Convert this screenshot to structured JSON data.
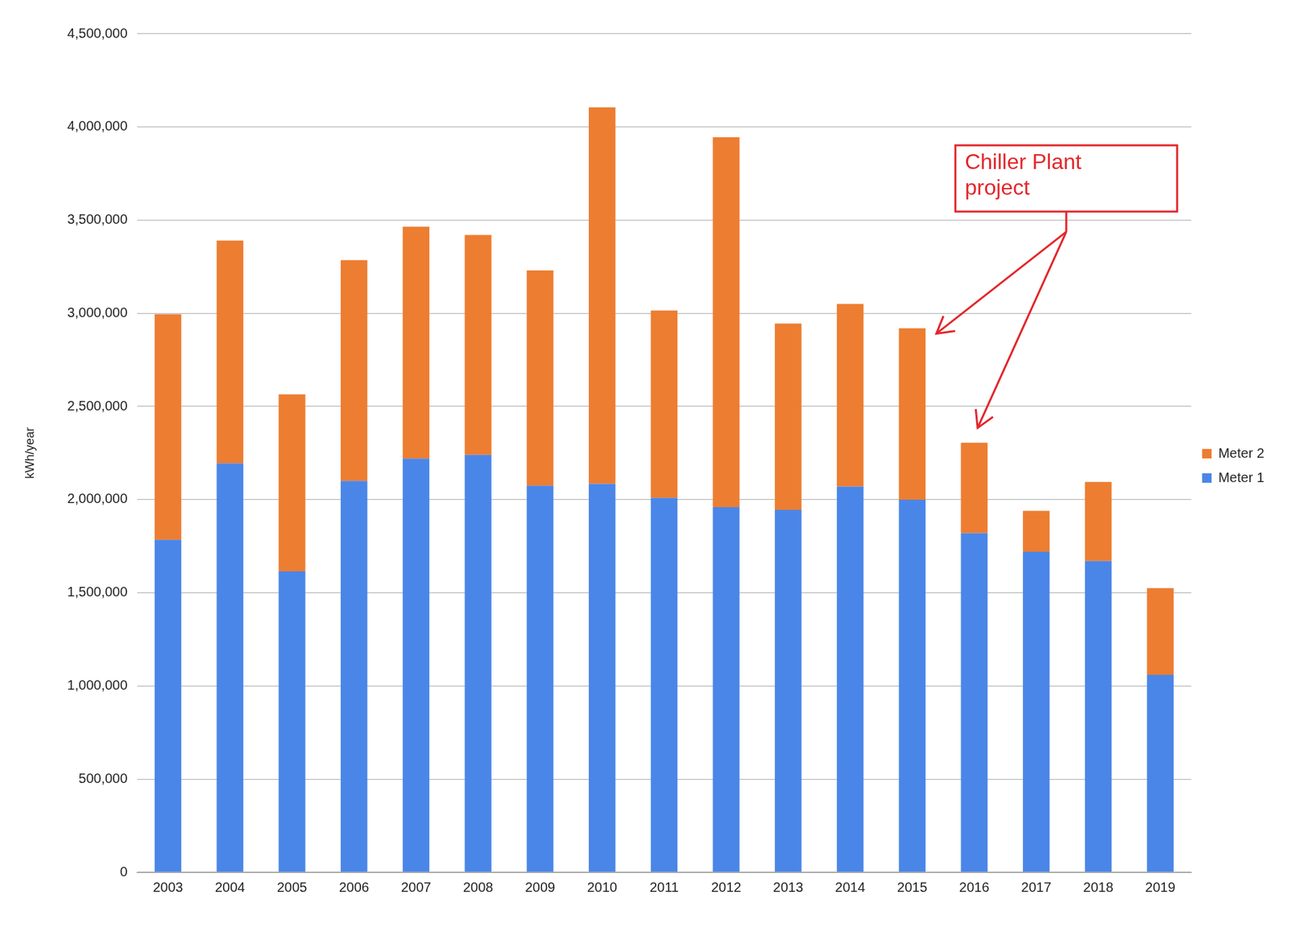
{
  "chart_data": {
    "type": "bar",
    "y_label": "kWh/year",
    "categories": [
      "2003",
      "2004",
      "2005",
      "2006",
      "2007",
      "2008",
      "2009",
      "2010",
      "2011",
      "2012",
      "2013",
      "2014",
      "2015",
      "2016",
      "2017",
      "2018",
      "2019"
    ],
    "series": [
      {
        "name": "Meter 1",
        "color": "#4a86e8",
        "values": [
          1785000,
          2195000,
          1615000,
          2100000,
          2220000,
          2240000,
          2075000,
          2085000,
          2010000,
          1960000,
          1945000,
          2070000,
          2000000,
          1820000,
          1720000,
          1670000,
          1060000
        ]
      },
      {
        "name": "Meter 2",
        "color": "#ed7d31",
        "values": [
          1210000,
          1195000,
          950000,
          1185000,
          1245000,
          1180000,
          1155000,
          2020000,
          1005000,
          1985000,
          1000000,
          980000,
          920000,
          485000,
          220000,
          425000,
          465000
        ]
      }
    ],
    "stacked": true,
    "ylim": [
      0,
      4500000
    ],
    "yticks": [
      0,
      {
        "value": 500000,
        "label": "500,000"
      },
      {
        "value": 1000000,
        "label": "1,000,000"
      },
      {
        "value": 1500000,
        "label": "1,500,000"
      },
      {
        "value": 2000000,
        "label": "2,000,000"
      },
      {
        "value": 2500000,
        "label": "2,500,000"
      },
      {
        "value": 3000000,
        "label": "3,000,000"
      },
      {
        "value": 3500000,
        "label": "3,500,000"
      },
      {
        "value": 4000000,
        "label": "4,000,000"
      },
      {
        "value": 4500000,
        "label": "4,500,000"
      }
    ],
    "grid": true,
    "legend": "right",
    "annotations": [
      {
        "text": "Chiller Plant project",
        "targets": [
          "2015",
          "2016"
        ]
      }
    ]
  }
}
